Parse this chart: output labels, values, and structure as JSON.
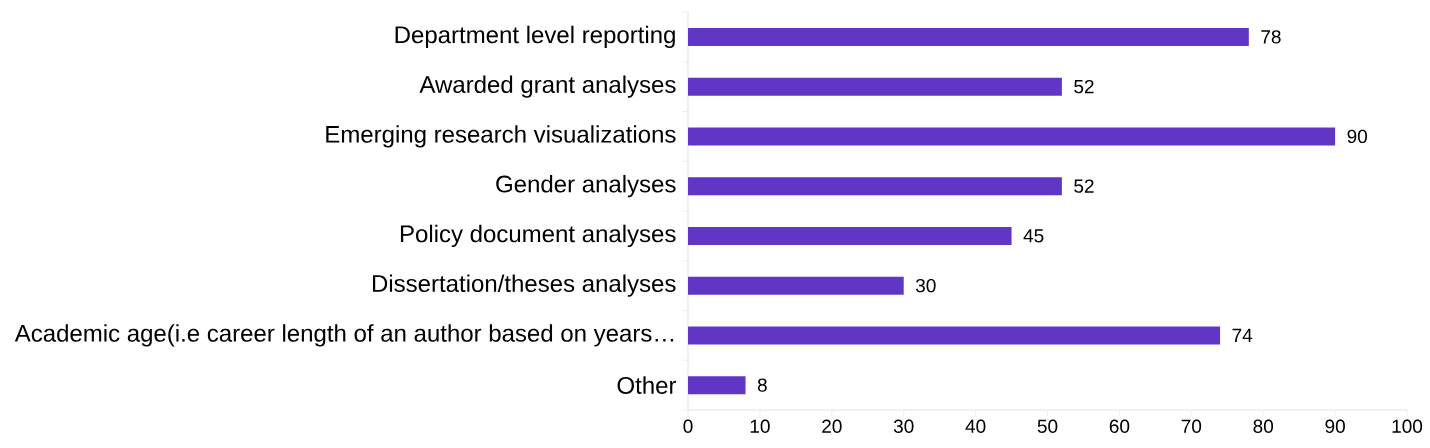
{
  "chart_data": {
    "type": "bar",
    "orientation": "horizontal",
    "categories": [
      "Department level reporting",
      "Awarded grant analyses",
      "Emerging research visualizations",
      "Gender analyses",
      "Policy document analyses",
      "Dissertation/theses analyses",
      "Academic age(i.e career length of an author based on years…",
      "Other"
    ],
    "values": [
      78,
      52,
      90,
      52,
      45,
      30,
      74,
      8
    ],
    "color": "#6236c4",
    "data_labels": true,
    "xlim": [
      0,
      100
    ],
    "xticks": [
      0,
      10,
      20,
      30,
      40,
      50,
      60,
      70,
      80,
      90,
      100
    ]
  }
}
